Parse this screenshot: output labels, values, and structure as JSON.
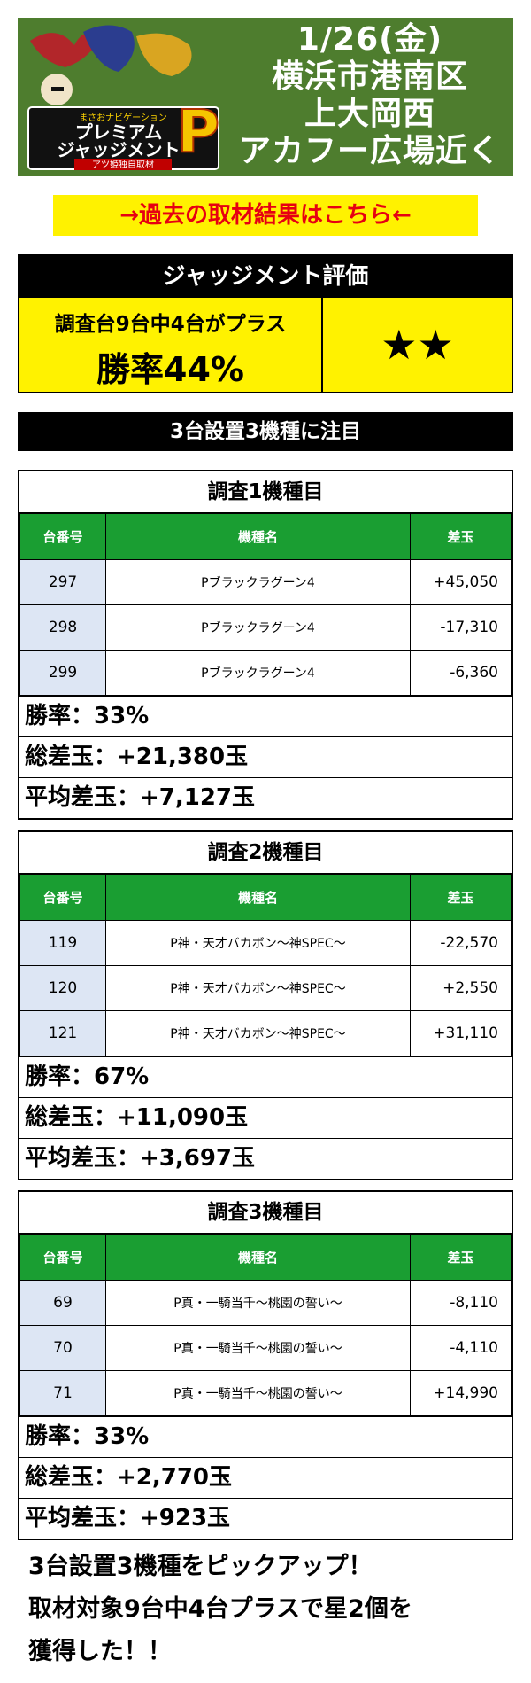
{
  "header": {
    "logo_text": [
      "まさおナビゲーション",
      "プレミアム",
      "ジャッジメント",
      "アツ姫独自取材"
    ],
    "date": "1/26(金)",
    "location_lines": [
      "横浜市港南区",
      "上大岡西",
      "アカフー広場近く"
    ]
  },
  "past_results_link": "→過去の取材結果はこちら←",
  "evaluation": {
    "title": "ジャッジメント評価",
    "detail": "調査台9台中4台がプラス",
    "win_rate": "勝率44%",
    "stars": "★★"
  },
  "focus_banner": "3台設置3機種に注目",
  "columns": {
    "number": "台番号",
    "model": "機種名",
    "diff": "差玉"
  },
  "models": [
    {
      "title": "調査1機種目",
      "rows": [
        {
          "number": "297",
          "model": "Pブラックラグーン4",
          "diff": "+45,050"
        },
        {
          "number": "298",
          "model": "Pブラックラグーン4",
          "diff": "-17,310"
        },
        {
          "number": "299",
          "model": "Pブラックラグーン4",
          "diff": "-6,360"
        }
      ],
      "win_rate": "勝率：33%",
      "total_diff": "総差玉：+21,380玉",
      "avg_diff": "平均差玉：+7,127玉"
    },
    {
      "title": "調査2機種目",
      "rows": [
        {
          "number": "119",
          "model": "P神・天才バカボン〜神SPEC〜",
          "diff": "-22,570"
        },
        {
          "number": "120",
          "model": "P神・天才バカボン〜神SPEC〜",
          "diff": "+2,550"
        },
        {
          "number": "121",
          "model": "P神・天才バカボン〜神SPEC〜",
          "diff": "+31,110"
        }
      ],
      "win_rate": "勝率：67%",
      "total_diff": "総差玉：+11,090玉",
      "avg_diff": "平均差玉：+3,697玉"
    },
    {
      "title": "調査3機種目",
      "rows": [
        {
          "number": "69",
          "model": "P真・一騎当千〜桃園の誓い〜",
          "diff": "-8,110"
        },
        {
          "number": "70",
          "model": "P真・一騎当千〜桃園の誓い〜",
          "diff": "-4,110"
        },
        {
          "number": "71",
          "model": "P真・一騎当千〜桃園の誓い〜",
          "diff": "+14,990"
        }
      ],
      "win_rate": "勝率：33%",
      "total_diff": "総差玉：+2,770玉",
      "avg_diff": "平均差玉：+923玉"
    }
  ],
  "summary_lines": [
    "3台設置3機種をピックアップ！",
    "取材対象9台中4台プラスで星2個を",
    "獲得した！！"
  ],
  "colors": {
    "header_green": "#4e7d2e",
    "table_green": "#1a9e32",
    "highlight_yellow": "#fff200",
    "link_red": "#e60012"
  }
}
